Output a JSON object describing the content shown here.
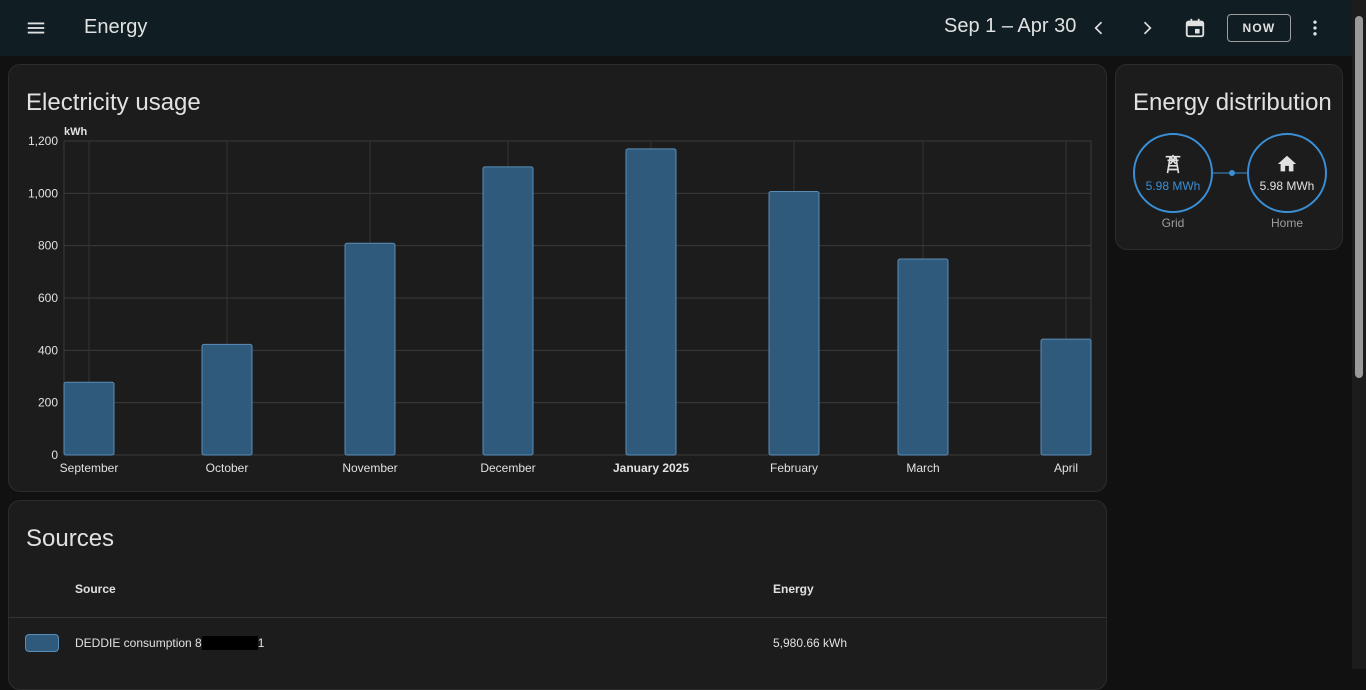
{
  "header": {
    "title": "Energy",
    "date_range": "Sep 1 – Apr 30",
    "now_label": "NOW",
    "icons": {
      "menu": "menu-icon",
      "prev": "chevron-left-icon",
      "next": "chevron-right-icon",
      "calendar": "calendar-icon",
      "more": "more-vert-icon"
    }
  },
  "usage_card": {
    "title": "Electricity usage"
  },
  "chart_data": {
    "type": "bar",
    "unit": "kWh",
    "categories": [
      "September",
      "October",
      "November",
      "December",
      "January 2025",
      "February",
      "March",
      "April"
    ],
    "values": [
      278,
      423,
      809,
      1101,
      1170,
      1007,
      749,
      443
    ],
    "ylim": [
      0,
      1200
    ],
    "yticks": [
      "0",
      "200",
      "400",
      "600",
      "800",
      "1,000",
      "1,200"
    ],
    "grid": true,
    "bar_color": "#2f5a7c",
    "bar_border": "#5a8db6"
  },
  "distribution_card": {
    "title": "Energy distribution",
    "grid": {
      "value": "5.98 MWh",
      "label": "Grid",
      "icon": "transmission-tower-icon"
    },
    "home": {
      "value": "5.98 MWh",
      "label": "Home",
      "icon": "home-icon"
    },
    "color": "#3a8fd6"
  },
  "sources_card": {
    "title": "Sources",
    "columns": {
      "source": "Source",
      "energy": "Energy"
    },
    "rows": [
      {
        "name_prefix": "DEDDIE consumption 8",
        "name_suffix": "1",
        "energy": "5,980.66 kWh"
      }
    ]
  }
}
